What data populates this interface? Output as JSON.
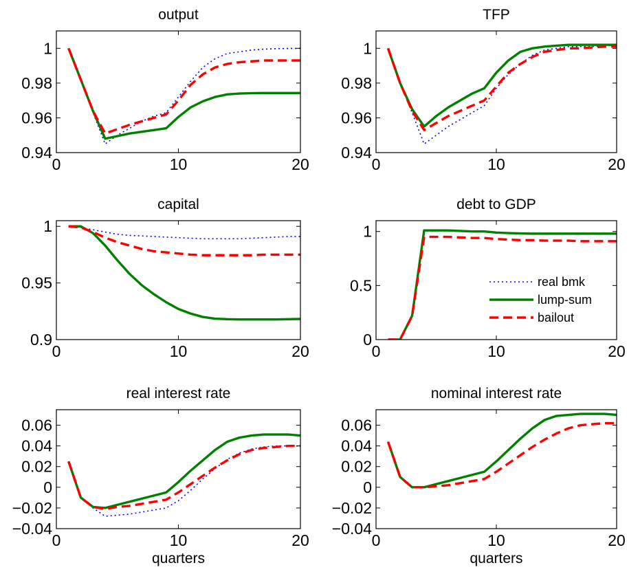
{
  "figure": {
    "xlabel": "quarters"
  },
  "chart_data": [
    {
      "type": "line",
      "title": "output",
      "xlabel": "",
      "ylabel": "",
      "xlim": [
        0,
        20
      ],
      "ylim": [
        0.94,
        1.01
      ],
      "xticks": [
        "0",
        "10",
        "20"
      ],
      "yticks": [
        "0.94",
        "0.96",
        "0.98",
        "1"
      ],
      "ytick_values": [
        0.94,
        0.96,
        0.98,
        1.0
      ],
      "x": [
        1,
        2,
        3,
        4,
        5,
        6,
        7,
        8,
        9,
        10,
        11,
        12,
        13,
        14,
        15,
        16,
        17,
        18,
        19,
        20
      ],
      "series": [
        {
          "name": "real bmk",
          "color": "#0000ff",
          "style": "dotted",
          "values": [
            1.0,
            0.982,
            0.963,
            0.945,
            0.95,
            0.954,
            0.958,
            0.961,
            0.963,
            0.972,
            0.981,
            0.989,
            0.994,
            0.997,
            0.998,
            0.999,
            0.9995,
            0.9998,
            0.9999,
            1.0
          ]
        },
        {
          "name": "lump-sum",
          "color": "#008000",
          "style": "solid",
          "values": [
            1.0,
            0.982,
            0.964,
            0.948,
            0.9495,
            0.951,
            0.952,
            0.953,
            0.954,
            0.9605,
            0.966,
            0.9695,
            0.972,
            0.9735,
            0.974,
            0.9742,
            0.9743,
            0.9743,
            0.9743,
            0.9743
          ]
        },
        {
          "name": "bailout",
          "color": "#ff0000",
          "style": "dashed",
          "values": [
            1.0,
            0.982,
            0.964,
            0.951,
            0.9535,
            0.956,
            0.958,
            0.96,
            0.962,
            0.97,
            0.979,
            0.985,
            0.989,
            0.991,
            0.992,
            0.9925,
            0.993,
            0.993,
            0.993,
            0.993
          ]
        }
      ]
    },
    {
      "type": "line",
      "title": "TFP",
      "xlabel": "",
      "ylabel": "",
      "xlim": [
        0,
        20
      ],
      "ylim": [
        0.94,
        1.01
      ],
      "xticks": [
        "0",
        "10",
        "20"
      ],
      "yticks": [
        "0.94",
        "0.96",
        "0.98",
        "1"
      ],
      "ytick_values": [
        0.94,
        0.96,
        0.98,
        1.0
      ],
      "x": [
        1,
        2,
        3,
        4,
        5,
        6,
        7,
        8,
        9,
        10,
        11,
        12,
        13,
        14,
        15,
        16,
        17,
        18,
        19,
        20
      ],
      "series": [
        {
          "name": "real bmk",
          "color": "#0000ff",
          "style": "dotted",
          "values": [
            1.0,
            0.98,
            0.963,
            0.945,
            0.95,
            0.955,
            0.959,
            0.963,
            0.967,
            0.977,
            0.985,
            0.991,
            0.996,
            0.999,
            1.0,
            1.001,
            1.001,
            1.001,
            1.0015,
            1.0015
          ]
        },
        {
          "name": "lump-sum",
          "color": "#008000",
          "style": "solid",
          "values": [
            1.0,
            0.98,
            0.965,
            0.955,
            0.961,
            0.966,
            0.97,
            0.974,
            0.977,
            0.986,
            0.993,
            0.998,
            1.0,
            1.001,
            1.0015,
            1.002,
            1.002,
            1.002,
            1.002,
            1.002
          ]
        },
        {
          "name": "bailout",
          "color": "#ff0000",
          "style": "dashed",
          "values": [
            1.0,
            0.98,
            0.964,
            0.953,
            0.957,
            0.961,
            0.964,
            0.967,
            0.97,
            0.978,
            0.986,
            0.991,
            0.995,
            0.998,
            0.999,
            1.0,
            1.0,
            1.0005,
            1.001,
            1.001
          ]
        }
      ]
    },
    {
      "type": "line",
      "title": "capital",
      "xlabel": "",
      "ylabel": "",
      "xlim": [
        0,
        20
      ],
      "ylim": [
        0.9,
        1.005
      ],
      "xticks": [
        "0",
        "10",
        "20"
      ],
      "yticks": [
        "0.9",
        "0.95",
        "1"
      ],
      "ytick_values": [
        0.9,
        0.95,
        1.0
      ],
      "x": [
        1,
        2,
        3,
        4,
        5,
        6,
        7,
        8,
        9,
        10,
        11,
        12,
        13,
        14,
        15,
        16,
        17,
        18,
        19,
        20
      ],
      "series": [
        {
          "name": "real bmk",
          "color": "#0000ff",
          "style": "dotted",
          "values": [
            1.0,
            0.999,
            0.997,
            0.995,
            0.993,
            0.992,
            0.9915,
            0.991,
            0.9905,
            0.99,
            0.9895,
            0.989,
            0.989,
            0.989,
            0.989,
            0.9895,
            0.99,
            0.9905,
            0.991,
            0.991
          ]
        },
        {
          "name": "lump-sum",
          "color": "#008000",
          "style": "solid",
          "values": [
            1.0,
            1.0,
            0.994,
            0.983,
            0.97,
            0.958,
            0.948,
            0.94,
            0.933,
            0.927,
            0.923,
            0.92,
            0.9185,
            0.918,
            0.9178,
            0.9178,
            0.9178,
            0.9178,
            0.918,
            0.9182
          ]
        },
        {
          "name": "bailout",
          "color": "#ff0000",
          "style": "dashed",
          "values": [
            1.0,
            0.999,
            0.995,
            0.99,
            0.986,
            0.983,
            0.98,
            0.978,
            0.977,
            0.976,
            0.975,
            0.9745,
            0.9745,
            0.9745,
            0.9745,
            0.9745,
            0.975,
            0.975,
            0.975,
            0.975
          ]
        }
      ]
    },
    {
      "type": "line",
      "title": "debt to GDP",
      "xlabel": "",
      "ylabel": "",
      "xlim": [
        0,
        20
      ],
      "ylim": [
        0,
        1.1
      ],
      "xticks": [
        "0",
        "10",
        "20"
      ],
      "yticks": [
        "0",
        "0.5",
        "1"
      ],
      "ytick_values": [
        0,
        0.5,
        1.0
      ],
      "legend": {
        "position": "lower-right"
      },
      "x": [
        1,
        2,
        3,
        4,
        5,
        6,
        7,
        8,
        9,
        10,
        11,
        12,
        13,
        14,
        15,
        16,
        17,
        18,
        19,
        20
      ],
      "series": [
        {
          "name": "real bmk",
          "color": "#0000ff",
          "style": "dotted",
          "values": [
            0.0,
            0.0,
            0.22,
            1.01,
            1.01,
            1.01,
            1.005,
            1.0,
            1.0,
            0.99,
            0.985,
            0.982,
            0.98,
            0.98,
            0.98,
            0.98,
            0.98,
            0.98,
            0.98,
            0.98
          ]
        },
        {
          "name": "lump-sum",
          "color": "#008000",
          "style": "solid",
          "values": [
            0.0,
            0.0,
            0.22,
            1.01,
            1.01,
            1.01,
            1.005,
            1.0,
            1.0,
            0.99,
            0.985,
            0.982,
            0.98,
            0.98,
            0.98,
            0.98,
            0.98,
            0.98,
            0.98,
            0.98
          ]
        },
        {
          "name": "bailout",
          "color": "#ff0000",
          "style": "dashed",
          "values": [
            0.0,
            0.0,
            0.22,
            0.95,
            0.95,
            0.95,
            0.945,
            0.94,
            0.94,
            0.93,
            0.925,
            0.92,
            0.92,
            0.915,
            0.915,
            0.915,
            0.91,
            0.91,
            0.91,
            0.91
          ]
        }
      ]
    },
    {
      "type": "line",
      "title": "real interest rate",
      "xlabel": "quarters",
      "ylabel": "",
      "xlim": [
        0,
        20
      ],
      "ylim": [
        -0.04,
        0.075
      ],
      "xticks": [
        "0",
        "10",
        "20"
      ],
      "yticks": [
        "−0.04",
        "−0.02",
        "0",
        "0.02",
        "0.04",
        "0.06"
      ],
      "ytick_values": [
        -0.04,
        -0.02,
        0,
        0.02,
        0.04,
        0.06
      ],
      "x": [
        1,
        2,
        3,
        4,
        5,
        6,
        7,
        8,
        9,
        10,
        11,
        12,
        13,
        14,
        15,
        16,
        17,
        18,
        19,
        20
      ],
      "series": [
        {
          "name": "real bmk",
          "color": "#0000ff",
          "style": "dotted",
          "values": [
            0.025,
            -0.01,
            -0.02,
            -0.028,
            -0.027,
            -0.026,
            -0.024,
            -0.022,
            -0.02,
            -0.013,
            -0.003,
            0.008,
            0.018,
            0.027,
            0.033,
            0.037,
            0.039,
            0.04,
            0.04,
            0.04
          ]
        },
        {
          "name": "lump-sum",
          "color": "#008000",
          "style": "solid",
          "values": [
            0.025,
            -0.01,
            -0.019,
            -0.02,
            -0.017,
            -0.014,
            -0.011,
            -0.008,
            -0.005,
            0.005,
            0.016,
            0.026,
            0.036,
            0.044,
            0.048,
            0.05,
            0.051,
            0.051,
            0.051,
            0.05
          ]
        },
        {
          "name": "bailout",
          "color": "#ff0000",
          "style": "dashed",
          "values": [
            0.025,
            -0.01,
            -0.019,
            -0.021,
            -0.019,
            -0.018,
            -0.016,
            -0.014,
            -0.012,
            -0.005,
            0.003,
            0.011,
            0.019,
            0.026,
            0.032,
            0.036,
            0.038,
            0.039,
            0.04,
            0.04
          ]
        }
      ]
    },
    {
      "type": "line",
      "title": "nominal interest rate",
      "xlabel": "quarters",
      "ylabel": "",
      "xlim": [
        0,
        20
      ],
      "ylim": [
        -0.04,
        0.075
      ],
      "xticks": [
        "0",
        "10",
        "20"
      ],
      "yticks": [
        "−0.04",
        "−0.02",
        "0",
        "0.02",
        "0.04",
        "0.06"
      ],
      "ytick_values": [
        -0.04,
        -0.02,
        0,
        0.02,
        0.04,
        0.06
      ],
      "x": [
        1,
        2,
        3,
        4,
        5,
        6,
        7,
        8,
        9,
        10,
        11,
        12,
        13,
        14,
        15,
        16,
        17,
        18,
        19,
        20
      ],
      "series": [
        {
          "name": "real bmk",
          "color": "#0000ff",
          "style": "dotted",
          "values": [
            0.044,
            0.01,
            0.0,
            0.0,
            0.003,
            0.006,
            0.009,
            0.012,
            0.015,
            0.025,
            0.036,
            0.047,
            0.057,
            0.065,
            0.069,
            0.07,
            0.071,
            0.071,
            0.071,
            0.07
          ]
        },
        {
          "name": "lump-sum",
          "color": "#008000",
          "style": "solid",
          "values": [
            0.044,
            0.01,
            0.0,
            0.0,
            0.003,
            0.006,
            0.009,
            0.012,
            0.015,
            0.025,
            0.036,
            0.047,
            0.057,
            0.065,
            0.069,
            0.07,
            0.071,
            0.071,
            0.071,
            0.07
          ]
        },
        {
          "name": "bailout",
          "color": "#ff0000",
          "style": "dashed",
          "values": [
            0.044,
            0.01,
            0.0,
            0.0,
            0.001,
            0.002,
            0.004,
            0.006,
            0.008,
            0.015,
            0.023,
            0.031,
            0.039,
            0.046,
            0.052,
            0.057,
            0.06,
            0.061,
            0.062,
            0.062
          ]
        }
      ]
    }
  ]
}
